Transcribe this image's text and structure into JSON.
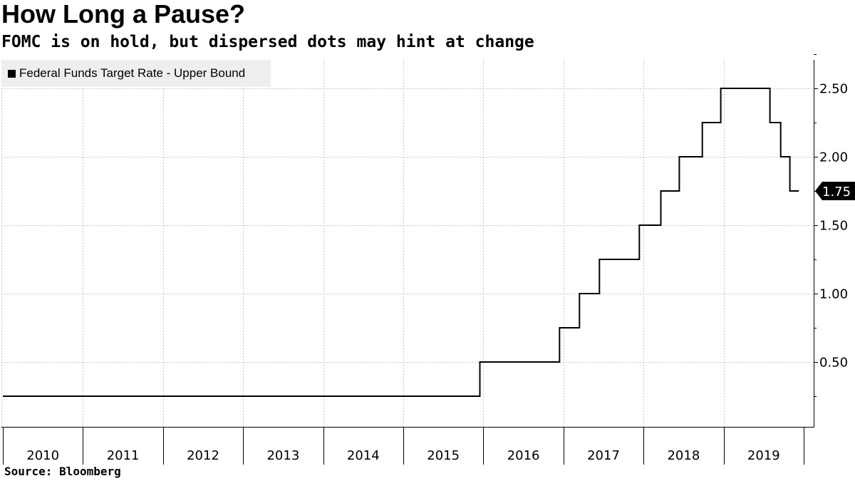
{
  "title": "How Long a Pause?",
  "subtitle": "FOMC is on hold, but dispersed dots may hint at change",
  "source": "Source: Bloomberg",
  "chart_data": {
    "type": "line",
    "line_shape": "step",
    "series": [
      {
        "name": "Federal Funds Target Rate - Upper Bound",
        "color": "#000000",
        "points": [
          {
            "x": "2010-01-01",
            "y": 0.25
          },
          {
            "x": "2015-12-16",
            "y": 0.5
          },
          {
            "x": "2016-12-14",
            "y": 0.75
          },
          {
            "x": "2017-03-15",
            "y": 1.0
          },
          {
            "x": "2017-06-14",
            "y": 1.25
          },
          {
            "x": "2017-12-13",
            "y": 1.5
          },
          {
            "x": "2018-03-21",
            "y": 1.75
          },
          {
            "x": "2018-06-13",
            "y": 2.0
          },
          {
            "x": "2018-09-26",
            "y": 2.25
          },
          {
            "x": "2018-12-19",
            "y": 2.5
          },
          {
            "x": "2019-07-31",
            "y": 2.25
          },
          {
            "x": "2019-09-18",
            "y": 2.0
          },
          {
            "x": "2019-10-30",
            "y": 1.75
          },
          {
            "x": "2019-12-10",
            "y": 1.75
          }
        ]
      }
    ],
    "x_tick_labels": [
      "2010",
      "2011",
      "2012",
      "2013",
      "2014",
      "2015",
      "2016",
      "2017",
      "2018",
      "2019"
    ],
    "y_tick_labels": [
      "0.50",
      "1.00",
      "1.50",
      "2.00",
      "2.50"
    ],
    "y_ticks": [
      0.5,
      1.0,
      1.5,
      2.0,
      2.5
    ],
    "ylim": [
      0,
      2.75
    ],
    "xlim": [
      "2010-01-01",
      "2020-01-01"
    ],
    "y_axis_side": "right",
    "grid": true,
    "legend_position": "top-left",
    "last_value_label": "1.75"
  }
}
